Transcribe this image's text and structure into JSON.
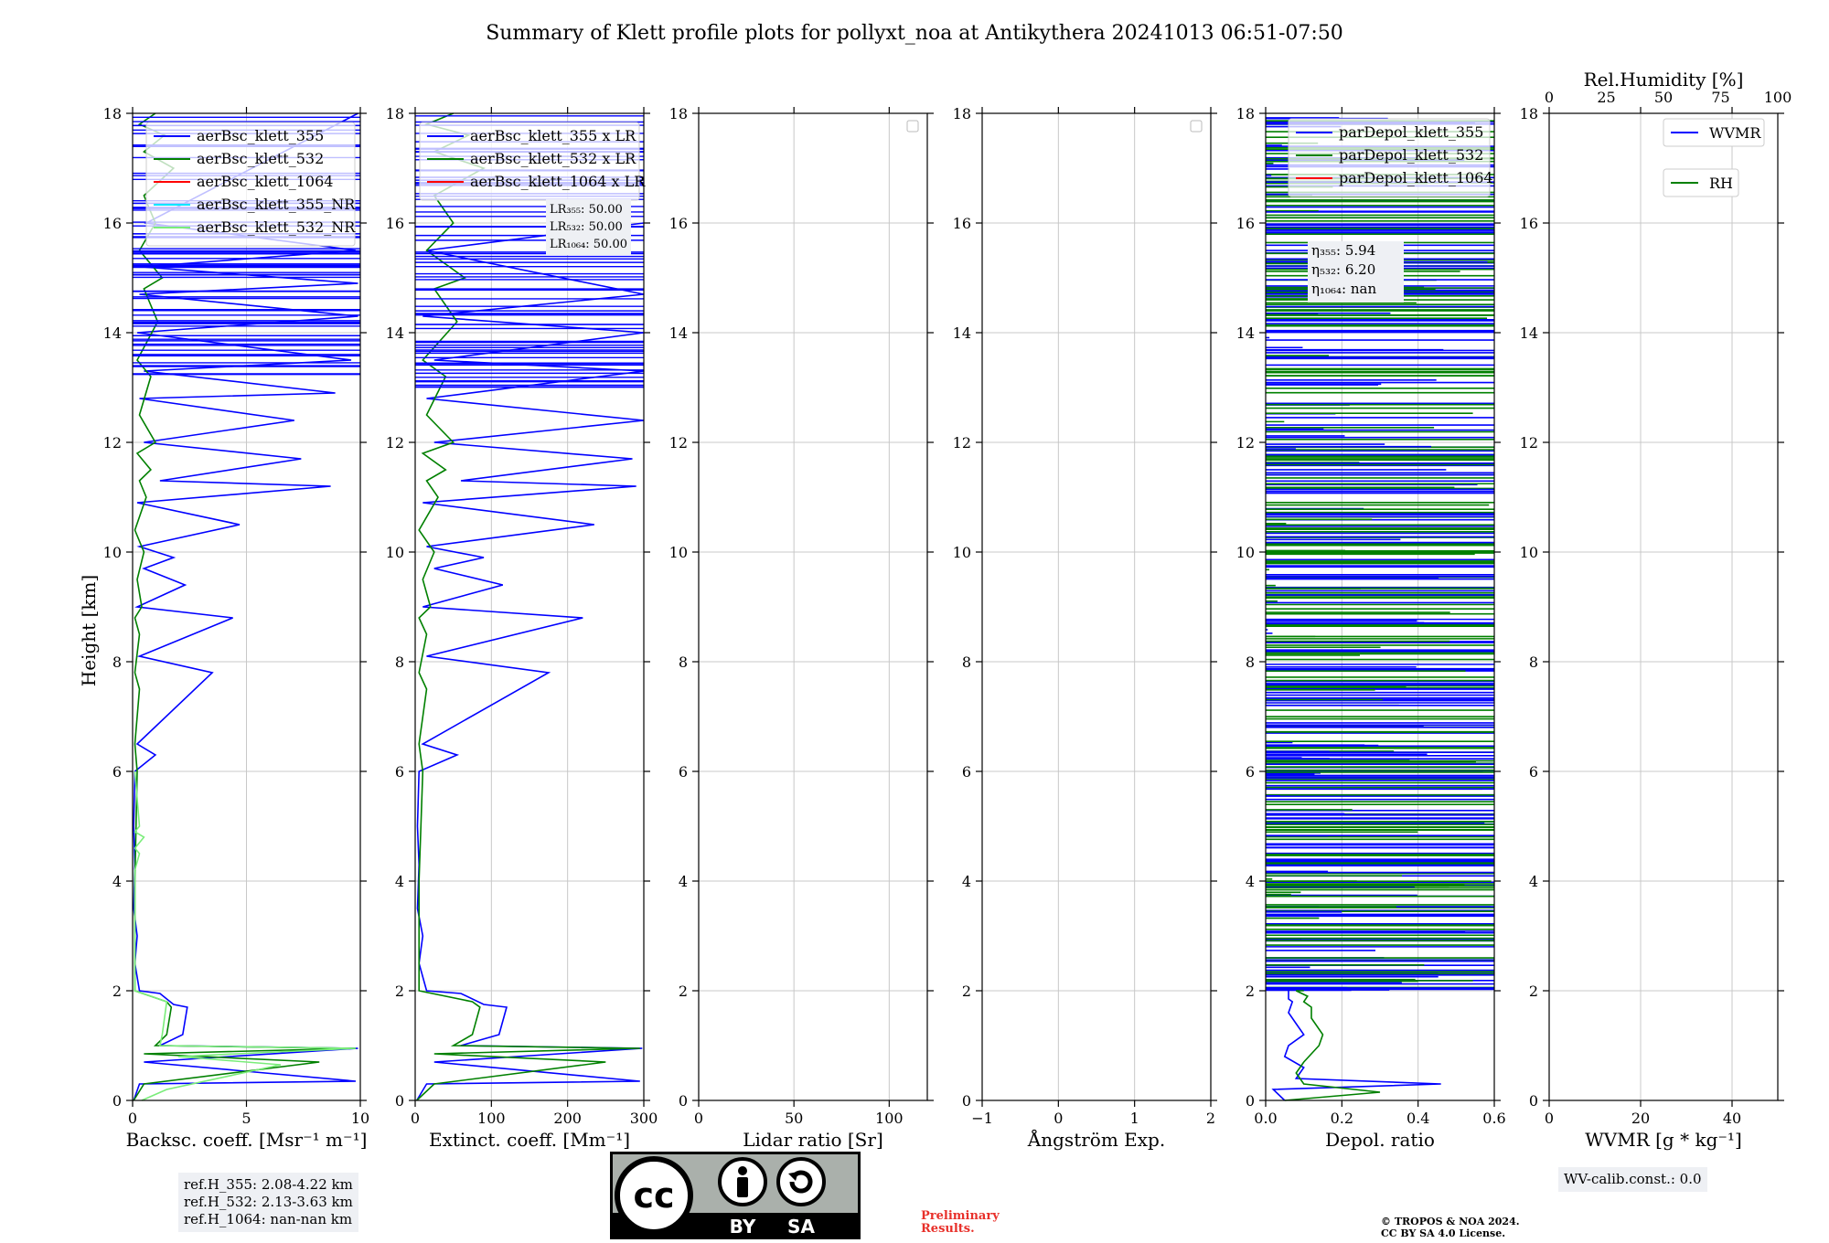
{
  "title": "Summary of Klett profile plots for pollyxt_noa at Antikythera 20241013 06:51-07:50",
  "y_label": "Height [km]",
  "colors": {
    "c355": "#0000ff",
    "c532": "#008000",
    "c1064": "#ff0000",
    "c355nr": "#00e5ff",
    "c532nr": "#7aed7a"
  },
  "chart_data": [
    {
      "type": "line",
      "xlabel": "Backsc. coeff. [Msr⁻¹ m⁻¹]",
      "xlim": [
        0,
        10
      ],
      "ylim": [
        0,
        18
      ],
      "xticks": [
        "0",
        "5",
        "10"
      ],
      "legend": [
        "aerBsc_klett_355",
        "aerBsc_klett_532",
        "aerBsc_klett_1064",
        "aerBsc_klett_355_NR",
        "aerBsc_klett_532_NR"
      ],
      "series": [
        {
          "name": "aerBsc_klett_355",
          "color": "c355",
          "x": [
            0.05,
            0.3,
            9.8,
            0.5,
            9.9,
            1.2,
            2.2,
            2.4,
            1.8,
            1.2,
            0.3,
            0.1,
            0.2,
            0.05,
            0.1,
            0.05,
            0.1,
            1.0,
            0.2,
            3.5,
            0.3,
            4.4,
            0.2,
            2.3,
            0.5,
            1.8,
            0.3,
            4.7,
            0.2,
            8.7,
            1.2,
            7.4,
            0.5,
            7.1,
            0.3,
            8.9,
            0.5,
            9.6,
            0.2,
            9.9,
            0.3,
            9.9,
            0.4,
            9.8,
            0.6,
            9.9
          ],
          "y": [
            0,
            0.3,
            0.35,
            0.7,
            0.95,
            1.0,
            1.2,
            1.7,
            1.75,
            1.95,
            2.0,
            2.5,
            3.0,
            3.5,
            4.3,
            5.0,
            6.0,
            6.3,
            6.5,
            7.8,
            8.1,
            8.8,
            9.0,
            9.4,
            9.7,
            9.9,
            10.1,
            10.5,
            10.9,
            11.2,
            11.3,
            11.7,
            12.0,
            12.4,
            12.8,
            12.9,
            13.3,
            13.5,
            14.0,
            14.3,
            14.7,
            14.9,
            15.2,
            15.5,
            16.0,
            18.0
          ]
        },
        {
          "name": "aerBsc_klett_532",
          "color": "c532",
          "x": [
            0.05,
            0.5,
            8.2,
            0.5,
            9.8,
            1.0,
            1.5,
            1.7,
            1.5,
            0.1,
            0.1,
            0.1,
            0.2,
            0.1,
            0.3,
            0.1,
            0.3,
            0.1,
            0.4,
            0.2,
            0.5,
            0.1,
            0.6,
            0.3,
            0.8,
            0.2,
            1.0,
            0.3,
            0.8,
            0.2,
            1.1,
            0.5,
            1.3,
            0.3,
            1.0,
            0.5,
            1.8,
            0.5,
            1.4,
            0.3,
            1.0
          ],
          "y": [
            0,
            0.3,
            0.7,
            0.85,
            0.95,
            1.0,
            1.2,
            1.7,
            1.8,
            2.0,
            3.0,
            4.0,
            6.0,
            6.5,
            7.5,
            7.8,
            8.5,
            8.8,
            9.0,
            9.5,
            10.0,
            10.4,
            11.0,
            11.3,
            11.5,
            11.8,
            12.0,
            12.5,
            13.2,
            13.5,
            14.2,
            14.8,
            15.0,
            15.5,
            16.0,
            16.5,
            17.0,
            17.3,
            17.6,
            17.8,
            18.0
          ]
        },
        {
          "name": "aerBsc_klett_532_NR",
          "color": "c532nr",
          "x": [
            0.4,
            1.5,
            6.5,
            2.0,
            9.8,
            1.2,
            1.3,
            1.5,
            0.1,
            0.1,
            0.3,
            0.1,
            0.5,
            0.1,
            0.3,
            0.1
          ],
          "y": [
            0,
            0.2,
            0.65,
            0.8,
            0.95,
            1.0,
            1.2,
            1.8,
            2.0,
            4.2,
            4.5,
            4.6,
            4.8,
            4.9,
            5.0,
            6.0
          ]
        }
      ]
    },
    {
      "type": "line",
      "xlabel": "Extinct. coeff. [Mm⁻¹]",
      "xlim": [
        0,
        300
      ],
      "ylim": [
        0,
        18
      ],
      "xticks": [
        "0",
        "100",
        "200",
        "300"
      ],
      "legend": [
        "aerBsc_klett_355 x LR",
        "aerBsc_klett_532 x LR",
        "aerBsc_klett_1064 x LR"
      ],
      "annotation": [
        "LR₃₅₅: 50.00",
        "LR₅₃₂: 50.00",
        "LR₁₀₆₄: 50.00"
      ],
      "series": [
        {
          "name": "aerBsc_klett_355 x LR",
          "color": "c355",
          "x": [
            2,
            15,
            295,
            25,
            298,
            60,
            110,
            120,
            90,
            60,
            15,
            5,
            10,
            3,
            5,
            3,
            5,
            55,
            10,
            175,
            15,
            220,
            10,
            115,
            25,
            90,
            15,
            235,
            10,
            290,
            60,
            285,
            25,
            300,
            15,
            300,
            25,
            300,
            10,
            300,
            15,
            300
          ],
          "y": [
            0,
            0.3,
            0.35,
            0.7,
            0.95,
            1.0,
            1.2,
            1.7,
            1.75,
            1.95,
            2.0,
            2.5,
            3.0,
            3.5,
            4.3,
            5.0,
            6.0,
            6.3,
            6.5,
            7.8,
            8.1,
            8.8,
            9.0,
            9.4,
            9.7,
            9.9,
            10.1,
            10.5,
            10.9,
            11.2,
            11.3,
            11.7,
            12.0,
            12.4,
            12.8,
            13.3,
            13.5,
            14.0,
            14.3,
            14.7,
            15.5,
            16.0
          ]
        },
        {
          "name": "aerBsc_klett_532 x LR",
          "color": "c532",
          "x": [
            2,
            25,
            250,
            25,
            295,
            50,
            75,
            85,
            75,
            5,
            5,
            5,
            10,
            5,
            15,
            5,
            15,
            5,
            20,
            10,
            25,
            5,
            30,
            15,
            40,
            10,
            50,
            15,
            40,
            10,
            55,
            25,
            65,
            15,
            50,
            25,
            90,
            25,
            70,
            15,
            50
          ],
          "y": [
            0,
            0.3,
            0.7,
            0.85,
            0.95,
            1.0,
            1.2,
            1.7,
            1.8,
            2.0,
            3.0,
            4.0,
            6.0,
            6.5,
            7.5,
            7.8,
            8.5,
            8.8,
            9.0,
            9.5,
            10.0,
            10.4,
            11.0,
            11.3,
            11.5,
            11.8,
            12.0,
            12.5,
            13.2,
            13.5,
            14.2,
            14.8,
            15.0,
            15.5,
            16.0,
            16.5,
            17.0,
            17.3,
            17.6,
            17.8,
            18.0
          ]
        }
      ]
    },
    {
      "type": "line",
      "xlabel": "Lidar ratio [Sr]",
      "xlim": [
        0,
        120
      ],
      "ylim": [
        0,
        18
      ],
      "xticks": [
        "0",
        "50",
        "100"
      ],
      "series": []
    },
    {
      "type": "line",
      "xlabel": "Ångström Exp.",
      "xlim": [
        -1,
        2
      ],
      "ylim": [
        0,
        18
      ],
      "xticks": [
        "−1",
        "0",
        "1",
        "2"
      ],
      "series": []
    },
    {
      "type": "line",
      "xlabel": "Depol. ratio",
      "xlim": [
        0,
        0.6
      ],
      "ylim": [
        0,
        18
      ],
      "xticks": [
        "0.0",
        "0.2",
        "0.4",
        "0.6"
      ],
      "legend": [
        "parDepol_klett_355",
        "parDepol_klett_532",
        "parDepol_klett_1064"
      ],
      "annotation": [
        "η₃₅₅: 5.94",
        "η₅₃₂: 6.20",
        "η₁₀₆₄: nan"
      ],
      "series": [
        {
          "name": "parDepol_klett_355",
          "color": "c355",
          "x": [
            0.05,
            0.02,
            0.46,
            0.08,
            0.1,
            0.05,
            0.06,
            0.1,
            0.08,
            0.06,
            0.07,
            0.06,
            0.06
          ],
          "y": [
            0,
            0.2,
            0.3,
            0.4,
            0.6,
            0.8,
            1.0,
            1.2,
            1.4,
            1.6,
            1.8,
            1.85,
            2.0
          ]
        },
        {
          "name": "parDepol_klett_532",
          "color": "c532",
          "x": [
            0.05,
            0.3,
            0.1,
            0.08,
            0.1,
            0.14,
            0.15,
            0.12,
            0.12,
            0.1,
            0.11,
            0.08,
            0.1
          ],
          "y": [
            0,
            0.15,
            0.3,
            0.5,
            0.7,
            1.0,
            1.2,
            1.5,
            1.7,
            1.8,
            1.9,
            2.0,
            2.0
          ]
        }
      ],
      "noise_region": {
        "y": [
          2,
          18
        ],
        "xmax": 0.6
      }
    },
    {
      "type": "line",
      "xlabel": "WVMR [g * kg⁻¹]",
      "xlim": [
        0,
        50
      ],
      "ylim": [
        0,
        18
      ],
      "xticks": [
        "0",
        "20",
        "40"
      ],
      "top_xlabel": "Rel.Humidity [%]",
      "top_xticks": [
        "0",
        "25",
        "50",
        "75",
        "100"
      ],
      "legend": [
        "WVMR",
        "RH"
      ],
      "series": []
    }
  ],
  "yticks": [
    "0",
    "2",
    "4",
    "6",
    "8",
    "10",
    "12",
    "14",
    "16",
    "18"
  ],
  "refbox": [
    "ref.H_355: 2.08-4.22 km",
    "ref.H_532: 2.13-3.63 km",
    "ref.H_1064: nan-nan km"
  ],
  "wvcalib": "WV-calib.const.: 0.0",
  "license_badge": {
    "left": "BY",
    "right": "SA",
    "cc": "cc"
  },
  "preliminary": [
    "Preliminary",
    "Results."
  ],
  "copyright": [
    "© TROPOS & NOA 2024.",
    "CC BY SA 4.0 License."
  ]
}
